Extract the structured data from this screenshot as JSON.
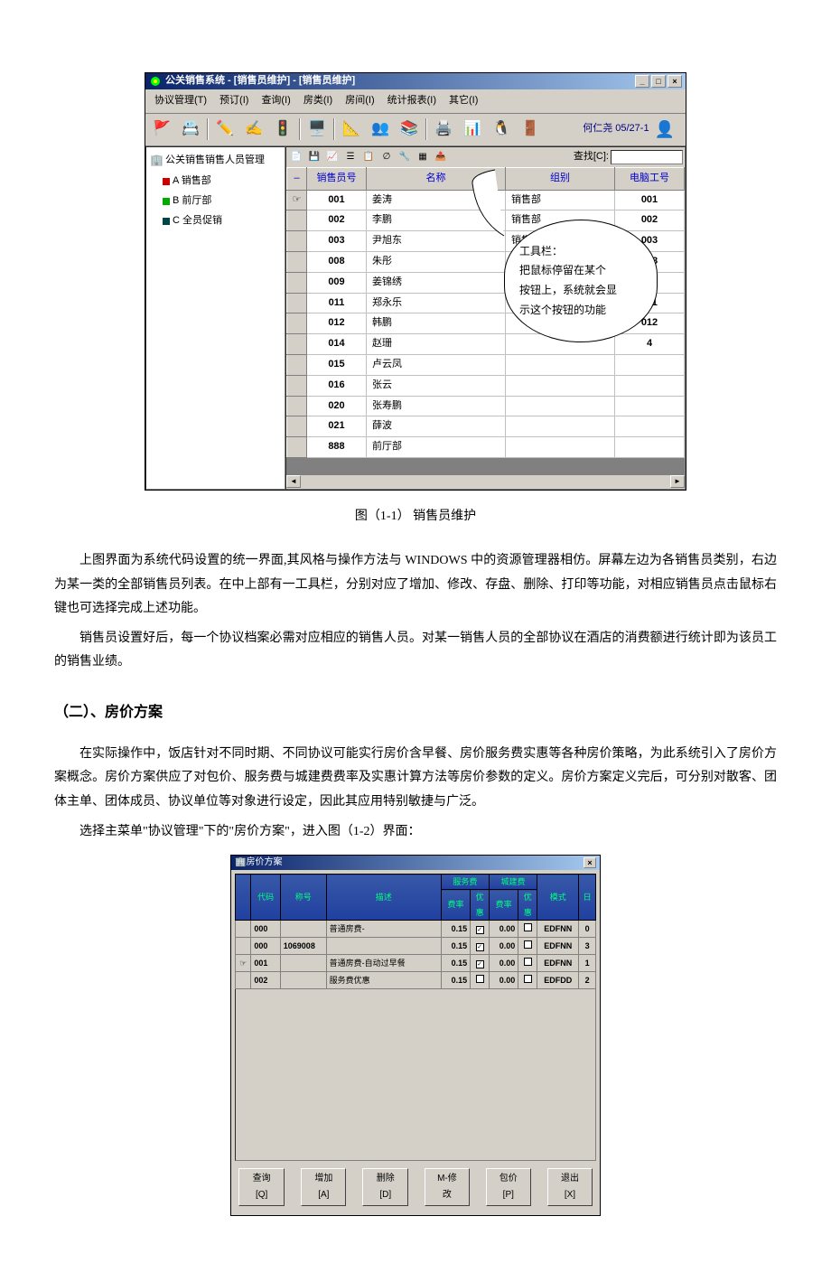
{
  "window1": {
    "title": "公关销售系统 - [销售员维护] - [销售员维护]",
    "menu": [
      "协议管理(T)",
      "预订(I)",
      "查询(I)",
      "房类(I)",
      "房间(I)",
      "统计报表(I)",
      "其它(I)"
    ],
    "user_label": "何仁尧 05/27-1",
    "tree": {
      "root": "公关销售销售人员管理",
      "items": [
        {
          "label": "A 销售部",
          "color": "red"
        },
        {
          "label": "B 前厅部",
          "color": "green"
        },
        {
          "label": "C 全员促销",
          "color": "dark"
        }
      ]
    },
    "search_label": "查找[C]:",
    "columns": [
      "销售员号",
      "名称",
      "组别",
      "电脑工号"
    ],
    "rows": [
      {
        "id": "001",
        "name": "姜涛",
        "group": "销售部",
        "empno": "001",
        "mark": "☞"
      },
      {
        "id": "002",
        "name": "李鹏",
        "group": "销售部",
        "empno": "002",
        "mark": ""
      },
      {
        "id": "003",
        "name": "尹旭东",
        "group": "销售部",
        "empno": "003",
        "mark": ""
      },
      {
        "id": "008",
        "name": "朱彤",
        "group": "销售部",
        "empno": "008",
        "mark": ""
      },
      {
        "id": "009",
        "name": "姜锦绣",
        "group": "销售部",
        "empno": "009",
        "mark": ""
      },
      {
        "id": "011",
        "name": "郑永乐",
        "group": "销售部",
        "empno": "011",
        "mark": ""
      },
      {
        "id": "012",
        "name": "韩鹏",
        "group": "",
        "empno": "012",
        "mark": ""
      },
      {
        "id": "014",
        "name": "赵珊",
        "group": "",
        "empno": "4",
        "mark": ""
      },
      {
        "id": "015",
        "name": "卢云凤",
        "group": "",
        "empno": "",
        "mark": ""
      },
      {
        "id": "016",
        "name": "张云",
        "group": "",
        "empno": "",
        "mark": ""
      },
      {
        "id": "020",
        "name": "张寿鹏",
        "group": "",
        "empno": "",
        "mark": ""
      },
      {
        "id": "021",
        "name": "薛波",
        "group": "",
        "empno": "",
        "mark": ""
      },
      {
        "id": "888",
        "name": "前厅部",
        "group": "",
        "empno": "",
        "mark": ""
      }
    ],
    "callout": {
      "l1": "工具栏：",
      "l2": "把鼠标停留在某个",
      "l3": "按钮上，系统就会显",
      "l4": "示这个按钮的功能"
    }
  },
  "caption1": "图（1-1）  销售员维护",
  "para1": "上图界面为系统代码设置的统一界面,其风格与操作方法与 WINDOWS 中的资源管理器相仿。屏幕左边为各销售员类别，右边为某一类的全部销售员列表。在中上部有一工具栏，分别对应了增加、修改、存盘、删除、打印等功能，对相应销售员点击鼠标右键也可选择完成上述功能。",
  "para2": "销售员设置好后，每一个协议档案必需对应相应的销售人员。对某一销售人员的全部协议在酒店的消费额进行统计即为该员工的销售业绩。",
  "heading2": "（二）、房价方案",
  "para3": "在实际操作中，饭店针对不同时期、不同协议可能实行房价含早餐、房价服务费实惠等各种房价策略，为此系统引入了房价方案概念。房价方案供应了对包价、服务费与城建费费率及实惠计算方法等房价参数的定义。房价方案定义完后，可分别对散客、团体主单、团体成员、协议单位等对象进行设定，因此其应用特别敏捷与广泛。",
  "para4": "选择主菜单\"协议管理\"下的\"房价方案\"，进入图（1-2）界面：",
  "window2": {
    "title": "房价方案",
    "columns_top": [
      "",
      "代码",
      "称号",
      "描述",
      "服务费",
      "城建费",
      "模式",
      "日"
    ],
    "columns_sub": [
      "费率",
      "优惠",
      "费率",
      "优惠"
    ],
    "rows": [
      {
        "mark": "",
        "code": "000",
        "name": "",
        "desc": "普通房费-",
        "sf": "0.15",
        "sfcb": true,
        "cj": "0.00",
        "cjcb": false,
        "mode": "EDFNN",
        "day": "0"
      },
      {
        "mark": "",
        "code": "000",
        "name": "1069008",
        "desc": "",
        "sf": "0.15",
        "sfcb": true,
        "cj": "0.00",
        "cjcb": false,
        "mode": "EDFNN",
        "day": "3"
      },
      {
        "mark": "☞",
        "code": "001",
        "name": "",
        "desc": "普通房费-自动过早餐",
        "sf": "0.15",
        "sfcb": true,
        "cj": "0.00",
        "cjcb": false,
        "mode": "EDFNN",
        "day": "1"
      },
      {
        "mark": "",
        "code": "002",
        "name": "",
        "desc": "服务费优惠",
        "sf": "0.15",
        "sfcb": false,
        "cj": "0.00",
        "cjcb": false,
        "mode": "EDFDD",
        "day": "2"
      }
    ],
    "buttons": [
      "查询[Q]",
      "增加[A]",
      "删除[D]",
      "M-修改",
      "包价[P]",
      "退出[X]"
    ]
  }
}
